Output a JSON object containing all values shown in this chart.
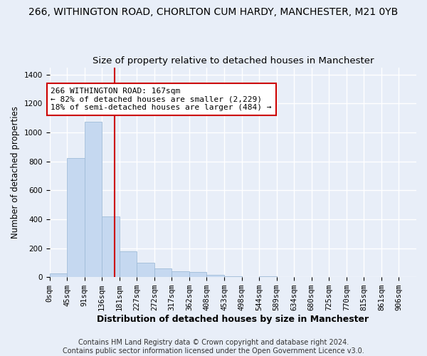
{
  "title1": "266, WITHINGTON ROAD, CHORLTON CUM HARDY, MANCHESTER, M21 0YB",
  "title2": "Size of property relative to detached houses in Manchester",
  "xlabel": "Distribution of detached houses by size in Manchester",
  "ylabel": "Number of detached properties",
  "footnote": "Contains HM Land Registry data © Crown copyright and database right 2024.\nContains public sector information licensed under the Open Government Licence v3.0.",
  "bin_labels": [
    "0sqm",
    "45sqm",
    "91sqm",
    "136sqm",
    "181sqm",
    "227sqm",
    "272sqm",
    "317sqm",
    "362sqm",
    "408sqm",
    "453sqm",
    "498sqm",
    "544sqm",
    "589sqm",
    "634sqm",
    "680sqm",
    "725sqm",
    "770sqm",
    "815sqm",
    "861sqm",
    "906sqm"
  ],
  "bar_values": [
    25,
    825,
    1075,
    420,
    180,
    100,
    58,
    40,
    35,
    18,
    8,
    0,
    8,
    0,
    0,
    0,
    0,
    0,
    0,
    0,
    0
  ],
  "bar_color": "#c5d8f0",
  "bar_edge_color": "#a0bcd8",
  "ylim": [
    0,
    1450
  ],
  "yticks": [
    0,
    200,
    400,
    600,
    800,
    1000,
    1200,
    1400
  ],
  "vline_x": 3.72,
  "annotation_text": "266 WITHINGTON ROAD: 167sqm\n← 82% of detached houses are smaller (2,229)\n18% of semi-detached houses are larger (484) →",
  "annotation_box_color": "#ffffff",
  "annotation_box_edgecolor": "#cc0000",
  "title1_fontsize": 10,
  "title2_fontsize": 9.5,
  "xlabel_fontsize": 9,
  "ylabel_fontsize": 8.5,
  "annotation_fontsize": 8,
  "tick_fontsize": 7.5,
  "footnote_fontsize": 7,
  "bg_color": "#e8eef8",
  "plot_bg_color": "#e8eef8",
  "grid_color": "#ffffff",
  "vline_color": "#cc0000"
}
